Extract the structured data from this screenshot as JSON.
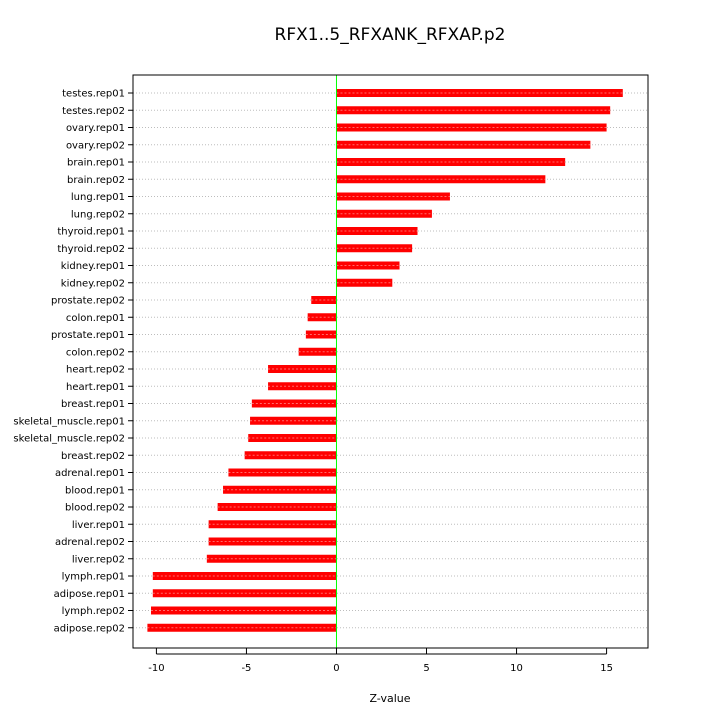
{
  "chart_data": {
    "type": "bar",
    "orientation": "horizontal",
    "title": "RFX1..5_RFXANK_RFXAP.p2",
    "xlabel": "Z-value",
    "ylabel": "",
    "xlim": [
      -11.3,
      17.3
    ],
    "xticks": [
      -10,
      -5,
      0,
      5,
      10,
      15
    ],
    "xtick_labels": [
      "-10",
      "-5",
      "0",
      "5",
      "10",
      "15"
    ],
    "grid": "horizontal dotted",
    "legend": "none",
    "categories": [
      "testes.rep01",
      "testes.rep02",
      "ovary.rep01",
      "ovary.rep02",
      "brain.rep01",
      "brain.rep02",
      "lung.rep01",
      "lung.rep02",
      "thyroid.rep01",
      "thyroid.rep02",
      "kidney.rep01",
      "kidney.rep02",
      "prostate.rep02",
      "colon.rep01",
      "prostate.rep01",
      "colon.rep02",
      "heart.rep02",
      "heart.rep01",
      "breast.rep01",
      "skeletal_muscle.rep01",
      "skeletal_muscle.rep02",
      "breast.rep02",
      "adrenal.rep01",
      "blood.rep01",
      "blood.rep02",
      "liver.rep01",
      "adrenal.rep02",
      "liver.rep02",
      "lymph.rep01",
      "adipose.rep01",
      "lymph.rep02",
      "adipose.rep02"
    ],
    "values": [
      15.9,
      15.2,
      15.0,
      14.1,
      12.7,
      11.6,
      6.3,
      5.3,
      4.5,
      4.2,
      3.5,
      3.1,
      -1.4,
      -1.6,
      -1.7,
      -2.1,
      -3.8,
      -3.8,
      -4.7,
      -4.8,
      -4.9,
      -5.1,
      -6.0,
      -6.3,
      -6.6,
      -7.1,
      -7.1,
      -7.2,
      -10.2,
      -10.2,
      -10.3,
      -10.5
    ],
    "colors": {
      "bar": "#ff0000",
      "bar_stripe": "#ff6b6b",
      "zero_line": "#00ff00",
      "grid": "#bdbdbd",
      "frame": "#000000"
    }
  }
}
